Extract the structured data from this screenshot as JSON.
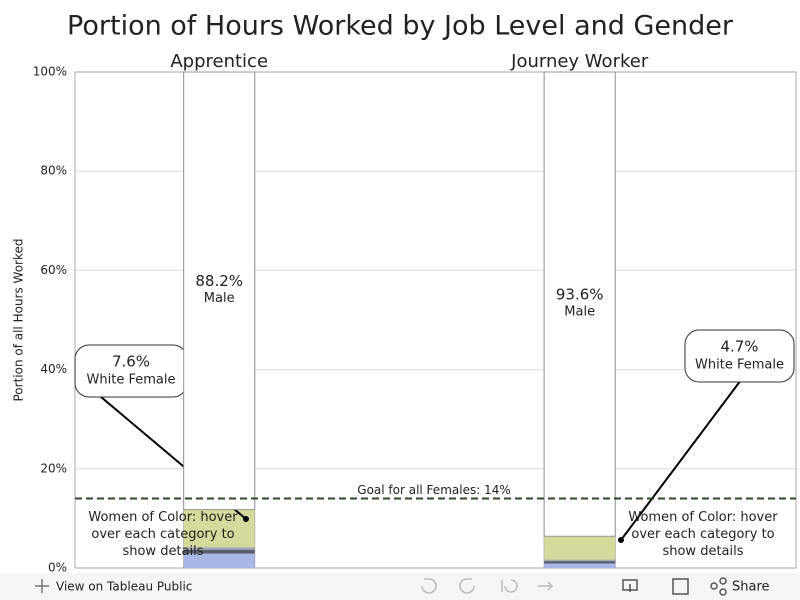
{
  "chart_data": {
    "type": "bar",
    "stacked": true,
    "title": "Portion of Hours Worked by Job Level and Gender",
    "y_label": "Portion of all Hours Worked",
    "categories": [
      "Apprentice",
      "Journey Worker"
    ],
    "series": [
      {
        "color": "#a9b7e6",
        "values": [
          2.9,
          0.9
        ]
      },
      {
        "color": "#5a5f6e",
        "values": [
          0.8,
          0.5
        ]
      },
      {
        "color": "#a3a8b6",
        "values": [
          0.5,
          0.3
        ]
      },
      {
        "name": "White Female",
        "color": "#d5d99c",
        "values": [
          7.6,
          4.7
        ],
        "value_labels": [
          "7.6%",
          "4.7%"
        ]
      },
      {
        "name": "Male",
        "color": "#ffffff",
        "values": [
          88.2,
          93.6
        ],
        "value_labels": [
          "88.2%",
          "93.6%"
        ]
      }
    ],
    "ylim": [
      0,
      100
    ],
    "yticks": [
      {
        "value": 0,
        "label": "0%"
      },
      {
        "value": 20,
        "label": "20%"
      },
      {
        "value": 40,
        "label": "40%"
      },
      {
        "value": 60,
        "label": "60%"
      },
      {
        "value": 80,
        "label": "80%"
      },
      {
        "value": 100,
        "label": "100%"
      }
    ],
    "grid": true,
    "goal": {
      "value": 14,
      "label": "Goal for all Females: 14%"
    },
    "annotation": "Women of Color: hover over each category to show details"
  },
  "toolbar": {
    "view_link": "View on Tableau Public",
    "share": "Share"
  }
}
